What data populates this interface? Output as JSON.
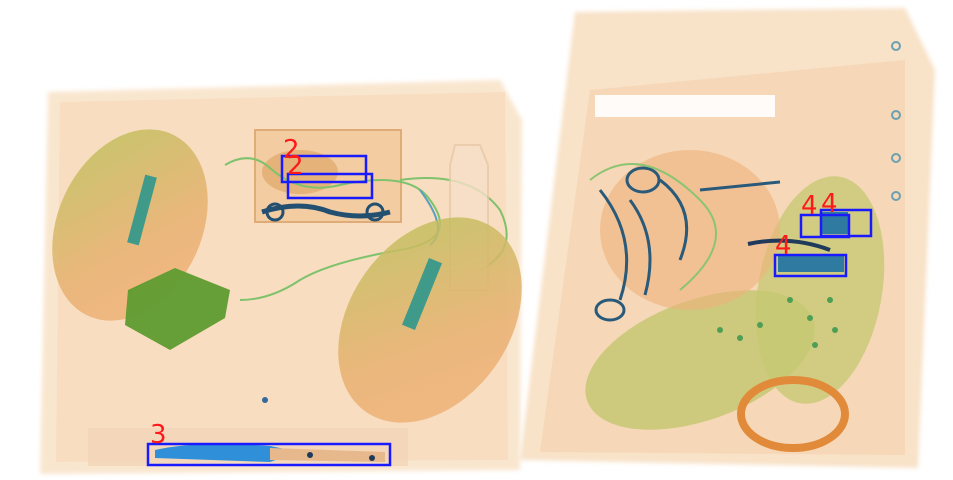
{
  "scene": {
    "description_colors": {
      "background": "#ffffff",
      "organic": "#f2b27a",
      "organic_light": "#f7dcc0",
      "mixed": "#9fb84a",
      "green": "#6aa336",
      "metal": "#1f5a8a",
      "box": "#1a1aff",
      "label": "#ff1a1a"
    }
  },
  "detections": [
    {
      "label": "2"
    },
    {
      "label": "2"
    },
    {
      "label": "3"
    },
    {
      "label": "4"
    },
    {
      "label": "4"
    },
    {
      "label": "4"
    }
  ]
}
